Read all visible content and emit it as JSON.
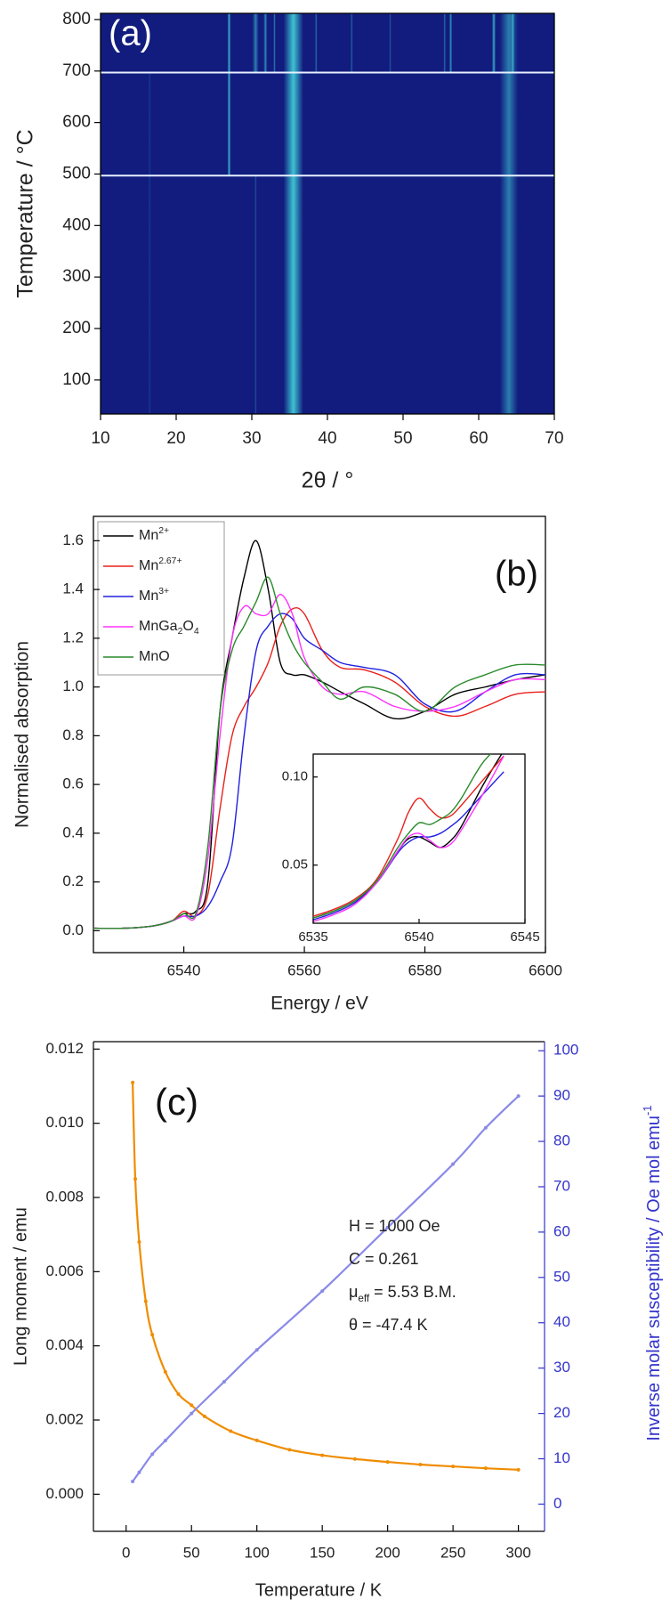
{
  "chart_data": [
    {
      "type": "heatmap",
      "panel": "(a)",
      "xlabel": "2θ / °",
      "ylabel": "Temperature / °C",
      "xlim": [
        10,
        70
      ],
      "ylim": [
        34,
        812
      ],
      "xticks": [
        10,
        20,
        30,
        40,
        50,
        60,
        70
      ],
      "yticks": [
        100,
        200,
        300,
        400,
        500,
        600,
        700,
        800
      ],
      "background": "#111c7e",
      "color": "#45e0e0",
      "streaks": [
        {
          "x": 35.5,
          "from": 34,
          "to": 812,
          "width": 2.6,
          "intensity": 0.85
        },
        {
          "x": 64,
          "from": 34,
          "to": 812,
          "width": 2.4,
          "intensity": 0.5
        },
        {
          "x": 27,
          "from": 497,
          "to": 812,
          "width": 0.45,
          "intensity": 0.75
        },
        {
          "x": 30.5,
          "from": 697,
          "to": 812,
          "width": 0.8,
          "intensity": 0.5
        },
        {
          "x": 31.8,
          "from": 697,
          "to": 812,
          "width": 0.5,
          "intensity": 0.55
        },
        {
          "x": 33,
          "from": 697,
          "to": 812,
          "width": 0.3,
          "intensity": 0.5
        },
        {
          "x": 38.5,
          "from": 697,
          "to": 812,
          "width": 0.3,
          "intensity": 0.4
        },
        {
          "x": 43.2,
          "from": 697,
          "to": 812,
          "width": 0.3,
          "intensity": 0.35
        },
        {
          "x": 48.3,
          "from": 697,
          "to": 812,
          "width": 0.3,
          "intensity": 0.3
        },
        {
          "x": 55.5,
          "from": 697,
          "to": 812,
          "width": 0.3,
          "intensity": 0.4
        },
        {
          "x": 56.3,
          "from": 697,
          "to": 812,
          "width": 0.4,
          "intensity": 0.6
        },
        {
          "x": 62,
          "from": 697,
          "to": 812,
          "width": 0.5,
          "intensity": 0.7
        },
        {
          "x": 64.5,
          "from": 697,
          "to": 812,
          "width": 0.5,
          "intensity": 0.6
        },
        {
          "x": 30.5,
          "from": 34,
          "to": 497,
          "width": 0.3,
          "intensity": 0.25
        },
        {
          "x": 16.5,
          "from": 34,
          "to": 697,
          "width": 0.3,
          "intensity": 0.15
        }
      ],
      "breaks": [
        497,
        697
      ]
    },
    {
      "type": "line",
      "panel": "(b)",
      "xlabel": "Energy / eV",
      "ylabel": "Normalised absorption",
      "xlim": [
        6525,
        6600
      ],
      "ylim": [
        -0.09,
        1.7
      ],
      "xticks": [
        6540,
        6560,
        6580,
        6600
      ],
      "yticks": [
        {
          "value": 0,
          "label": "0.0"
        },
        0.2,
        0.4,
        0.6,
        0.8,
        {
          "value": 1,
          "label": "1.0"
        },
        1.2,
        1.4,
        1.6
      ],
      "x": [
        6525,
        6530,
        6535,
        6538,
        6540,
        6542,
        6544,
        6546,
        6548,
        6550,
        6552,
        6554,
        6556,
        6558,
        6560,
        6563,
        6566,
        6570,
        6575,
        6580,
        6585,
        6590,
        6595,
        6600
      ],
      "series": [
        {
          "name": [
            "Mn",
            {
              "sup": "2+"
            }
          ],
          "color": "#000000",
          "values": [
            0.01,
            0.01,
            0.02,
            0.04,
            0.07,
            0.08,
            0.2,
            0.9,
            1.2,
            1.45,
            1.6,
            1.4,
            1.1,
            1.05,
            1.05,
            1.02,
            0.98,
            0.93,
            0.87,
            0.9,
            0.97,
            1.0,
            1.03,
            1.05
          ]
        },
        {
          "name": [
            "Mn",
            {
              "sup": "2.67+"
            }
          ],
          "color": "#e8201c",
          "values": [
            0.01,
            0.01,
            0.02,
            0.04,
            0.08,
            0.06,
            0.15,
            0.5,
            0.8,
            0.92,
            1.0,
            1.1,
            1.25,
            1.32,
            1.3,
            1.15,
            1.08,
            1.07,
            1.02,
            0.92,
            0.88,
            0.92,
            0.97,
            0.98
          ]
        },
        {
          "name": [
            "Mn",
            {
              "sup": "3+"
            }
          ],
          "color": "#2020e0",
          "values": [
            0.01,
            0.01,
            0.02,
            0.04,
            0.06,
            0.06,
            0.1,
            0.2,
            0.35,
            0.8,
            1.15,
            1.25,
            1.3,
            1.28,
            1.2,
            1.15,
            1.1,
            1.08,
            1.05,
            0.93,
            0.9,
            0.98,
            1.05,
            1.05
          ]
        },
        {
          "name": [
            "MnGa",
            {
              "sub": "2"
            },
            "O",
            {
              "sub": "4"
            }
          ],
          "color": "#ff33ff",
          "values": [
            0.01,
            0.01,
            0.02,
            0.04,
            0.06,
            0.06,
            0.3,
            0.8,
            1.2,
            1.33,
            1.3,
            1.3,
            1.38,
            1.3,
            1.12,
            1.0,
            0.97,
            0.98,
            0.92,
            0.9,
            0.92,
            0.98,
            1.03,
            1.03
          ]
        },
        {
          "name": "MnO",
          "color": "#2a8a2a",
          "values": [
            0.01,
            0.01,
            0.02,
            0.04,
            0.07,
            0.07,
            0.35,
            0.9,
            1.15,
            1.25,
            1.35,
            1.45,
            1.3,
            1.18,
            1.1,
            1.02,
            0.95,
            1.0,
            0.97,
            0.9,
            1.0,
            1.05,
            1.09,
            1.09
          ]
        }
      ],
      "inset": {
        "xlim": [
          6535,
          6545
        ],
        "ylim": [
          0.017,
          0.113
        ],
        "xticks": [
          6535,
          6540,
          6545
        ],
        "yticks": [
          0.05,
          {
            "value": 0.1,
            "label": "0.10"
          }
        ],
        "x": [
          6535,
          6536,
          6537,
          6538,
          6539,
          6539.5,
          6540,
          6540.5,
          6541,
          6541.5,
          6542,
          6543,
          6544
        ],
        "series": [
          {
            "values": [
              0.02,
              0.024,
              0.03,
              0.04,
              0.058,
              0.065,
              0.066,
              0.063,
              0.06,
              0.064,
              0.072,
              0.095,
              0.115
            ]
          },
          {
            "values": [
              0.021,
              0.025,
              0.031,
              0.042,
              0.065,
              0.08,
              0.088,
              0.082,
              0.077,
              0.078,
              0.084,
              0.098,
              0.112
            ]
          },
          {
            "values": [
              0.019,
              0.023,
              0.029,
              0.04,
              0.057,
              0.063,
              0.066,
              0.066,
              0.068,
              0.072,
              0.077,
              0.09,
              0.103
            ]
          },
          {
            "values": [
              0.018,
              0.022,
              0.028,
              0.04,
              0.058,
              0.066,
              0.068,
              0.064,
              0.06,
              0.062,
              0.07,
              0.09,
              0.112
            ]
          },
          {
            "values": [
              0.02,
              0.024,
              0.03,
              0.041,
              0.06,
              0.068,
              0.074,
              0.073,
              0.076,
              0.08,
              0.088,
              0.108,
              0.12
            ]
          }
        ]
      }
    },
    {
      "type": "scatter",
      "panel": "(c)",
      "xlabel": "Temperature / K",
      "ylabel": "Long moment / emu",
      "y2label": [
        "Inverse molar susceptibility / Oe mol emu",
        {
          "sup": "-1"
        }
      ],
      "xlim": [
        -25,
        320
      ],
      "ylim": [
        -0.001,
        0.0122
      ],
      "y2lim": [
        -6,
        102
      ],
      "xticks": [
        0,
        50,
        100,
        150,
        200,
        250,
        300
      ],
      "yticks": [
        {
          "value": 0,
          "label": "0.000"
        },
        0.002,
        0.004,
        0.006,
        0.008,
        {
          "value": 0.01,
          "label": "0.010"
        },
        0.012
      ],
      "y2ticks": [
        0,
        10,
        20,
        30,
        40,
        50,
        60,
        70,
        80,
        90,
        100
      ],
      "series": [
        {
          "color": "#f08c00",
          "x": [
            5,
            7,
            10,
            15,
            20,
            30,
            40,
            50,
            60,
            80,
            100,
            125,
            150,
            175,
            200,
            225,
            250,
            275,
            300
          ],
          "values": [
            0.0111,
            0.0085,
            0.0068,
            0.0052,
            0.0043,
            0.0033,
            0.0027,
            0.0024,
            0.0021,
            0.0017,
            0.00145,
            0.0012,
            0.00105,
            0.00095,
            0.00087,
            0.0008,
            0.00075,
            0.0007,
            0.00066
          ]
        },
        {
          "color": "#8a8ae8",
          "axis": "y2",
          "x": [
            5,
            10,
            20,
            30,
            50,
            75,
            100,
            150,
            200,
            250,
            275,
            300
          ],
          "values": [
            5,
            7,
            11,
            14,
            20,
            27,
            34,
            47,
            61,
            75,
            83,
            90
          ]
        }
      ],
      "annotations": [
        "H = 1000 Oe",
        "C = 0.261",
        [
          "μ",
          {
            "sub": "eff"
          },
          " = 5.53 B.M."
        ],
        "θ = -47.4 K"
      ]
    }
  ]
}
